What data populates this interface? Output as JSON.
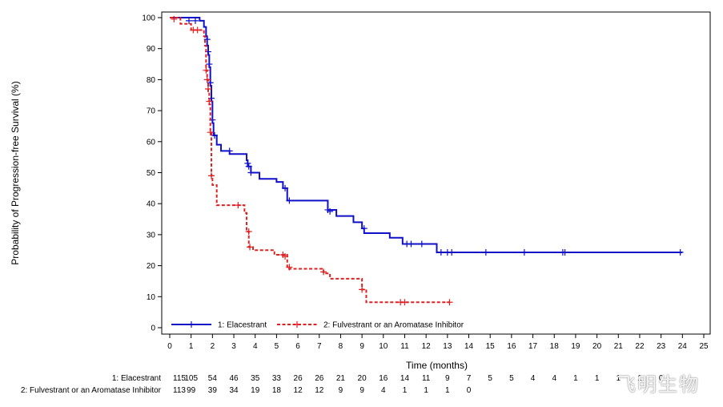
{
  "chart_data": {
    "type": "line",
    "subtype": "kaplan-meier",
    "xlabel": "Time (months)",
    "ylabel": "Probability of Progression-free Survival (%)",
    "xlim": [
      0,
      25
    ],
    "ylim": [
      0,
      100
    ],
    "xticks": [
      "0",
      "1",
      "2",
      "3",
      "4",
      "5",
      "6",
      "7",
      "8",
      "9",
      "10",
      "11",
      "12",
      "13",
      "14",
      "15",
      "16",
      "17",
      "18",
      "19",
      "20",
      "21",
      "22",
      "23",
      "24",
      "25"
    ],
    "yticks": [
      "0",
      "10",
      "20",
      "30",
      "40",
      "50",
      "60",
      "70",
      "80",
      "90",
      "100"
    ],
    "legend_position": "bottom-left",
    "series": [
      {
        "name": "1: Elacestrant",
        "color": "#1010c8",
        "line_style": "solid",
        "steps": [
          [
            0,
            100
          ],
          [
            1.4,
            99
          ],
          [
            1.6,
            97
          ],
          [
            1.7,
            94
          ],
          [
            1.75,
            91
          ],
          [
            1.8,
            88
          ],
          [
            1.85,
            84
          ],
          [
            1.9,
            78
          ],
          [
            1.95,
            73
          ],
          [
            2.0,
            66
          ],
          [
            2.05,
            62
          ],
          [
            2.2,
            59
          ],
          [
            2.4,
            57
          ],
          [
            2.8,
            56
          ],
          [
            3.6,
            54
          ],
          [
            3.65,
            52
          ],
          [
            3.8,
            50
          ],
          [
            4.2,
            48
          ],
          [
            5.0,
            47
          ],
          [
            5.3,
            45
          ],
          [
            5.5,
            41
          ],
          [
            7.4,
            38
          ],
          [
            7.8,
            36
          ],
          [
            8.6,
            34
          ],
          [
            9.0,
            32
          ],
          [
            9.1,
            30.5
          ],
          [
            10.3,
            29
          ],
          [
            10.9,
            27
          ],
          [
            12.5,
            24.3
          ],
          [
            24.0,
            24.3
          ]
        ],
        "censors": [
          [
            0.9,
            99
          ],
          [
            1.2,
            99
          ],
          [
            1.75,
            93
          ],
          [
            1.8,
            89
          ],
          [
            1.85,
            85
          ],
          [
            1.9,
            79
          ],
          [
            1.95,
            74
          ],
          [
            2.0,
            67
          ],
          [
            2.1,
            62
          ],
          [
            2.8,
            57
          ],
          [
            3.65,
            53
          ],
          [
            3.7,
            52
          ],
          [
            3.8,
            50
          ],
          [
            5.4,
            45
          ],
          [
            5.6,
            41
          ],
          [
            7.4,
            38
          ],
          [
            7.5,
            37.5
          ],
          [
            9.1,
            32
          ],
          [
            11.1,
            27
          ],
          [
            11.3,
            27
          ],
          [
            11.8,
            27
          ],
          [
            12.7,
            24.3
          ],
          [
            13.0,
            24.3
          ],
          [
            13.2,
            24.3
          ],
          [
            14.8,
            24.3
          ],
          [
            16.6,
            24.3
          ],
          [
            18.4,
            24.3
          ],
          [
            18.5,
            24.3
          ],
          [
            23.9,
            24.3
          ]
        ]
      },
      {
        "name": "2: Fulvestrant or an Aromatase Inhibitor",
        "color": "#e02020",
        "line_style": "dashed",
        "steps": [
          [
            0,
            100
          ],
          [
            0.5,
            98
          ],
          [
            1.0,
            96
          ],
          [
            1.6,
            94
          ],
          [
            1.65,
            91
          ],
          [
            1.7,
            83
          ],
          [
            1.75,
            80
          ],
          [
            1.8,
            76
          ],
          [
            1.85,
            72
          ],
          [
            1.9,
            63
          ],
          [
            1.95,
            49
          ],
          [
            2.0,
            46
          ],
          [
            2.2,
            39.5
          ],
          [
            3.3,
            39.5
          ],
          [
            3.5,
            37
          ],
          [
            3.6,
            31
          ],
          [
            3.7,
            26
          ],
          [
            3.9,
            25
          ],
          [
            4.9,
            23.5
          ],
          [
            5.5,
            19
          ],
          [
            7.2,
            17.5
          ],
          [
            7.5,
            15.8
          ],
          [
            9.0,
            12.3
          ],
          [
            9.2,
            8.2
          ],
          [
            13.1,
            8.2
          ]
        ],
        "censors": [
          [
            0.2,
            99.5
          ],
          [
            1.1,
            96
          ],
          [
            1.3,
            96
          ],
          [
            1.7,
            83
          ],
          [
            1.75,
            80
          ],
          [
            1.8,
            77
          ],
          [
            1.85,
            73
          ],
          [
            1.9,
            63
          ],
          [
            1.95,
            49
          ],
          [
            3.2,
            39.5
          ],
          [
            3.7,
            31
          ],
          [
            3.75,
            26
          ],
          [
            5.3,
            23.5
          ],
          [
            5.4,
            23
          ],
          [
            5.6,
            19.5
          ],
          [
            7.2,
            18
          ],
          [
            9.0,
            12.3
          ],
          [
            10.8,
            8.2
          ],
          [
            11.0,
            8.2
          ],
          [
            13.1,
            8.2
          ]
        ]
      }
    ],
    "risk_table": {
      "rows": [
        {
          "label": "1: Elacestrant",
          "values": [
            "115",
            "105",
            "54",
            "46",
            "35",
            "33",
            "26",
            "26",
            "21",
            "20",
            "16",
            "14",
            "11",
            "9",
            "7",
            "5",
            "5",
            "4",
            "4",
            "1",
            "1",
            "1",
            "1",
            "0"
          ]
        },
        {
          "label": "2: Fulvestrant or an Aromatase Inhibitor",
          "values": [
            "113",
            "99",
            "39",
            "34",
            "19",
            "18",
            "12",
            "12",
            "9",
            "9",
            "4",
            "1",
            "1",
            "1",
            "0"
          ]
        }
      ]
    },
    "watermark": "飞明生物"
  }
}
